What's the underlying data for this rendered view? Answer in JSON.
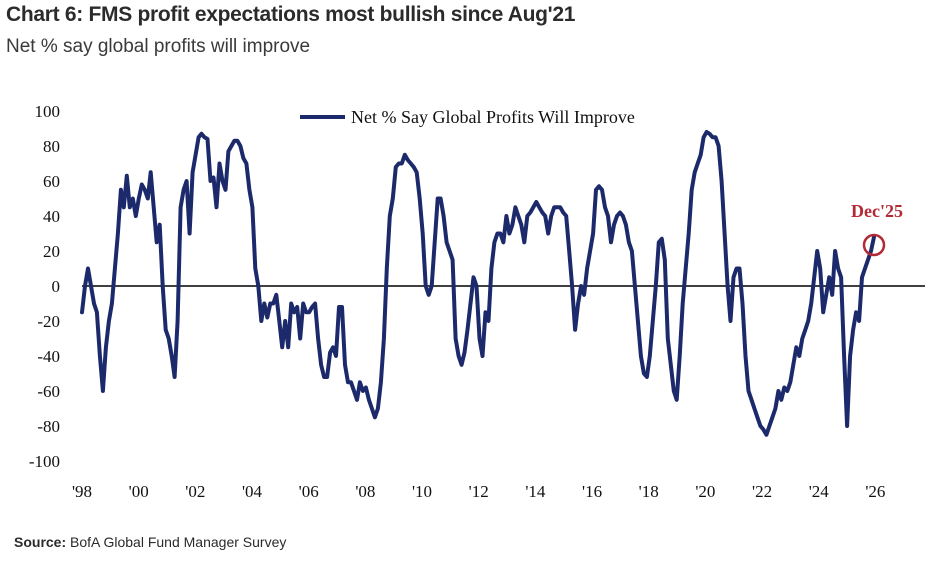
{
  "header": {
    "title": "Chart 6: FMS profit expectations most bullish since Aug'21",
    "subtitle": "Net % say global profits will improve"
  },
  "footer": {
    "source_label": "Source:",
    "source_text": "BofA Global Fund Manager Survey"
  },
  "colors": {
    "line": "#1c2a6b",
    "accent": "#b22a35",
    "axis": "#000000"
  },
  "chart_data": {
    "type": "line",
    "title": "",
    "xlabel": "",
    "ylabel": "",
    "legend": "top-center",
    "grid": false,
    "xlim": [
      1998,
      2026.9
    ],
    "ylim": [
      -100,
      100
    ],
    "yticks": [
      100,
      80,
      60,
      40,
      20,
      0,
      -20,
      -40,
      -60,
      -80,
      -100
    ],
    "xticks": [
      {
        "value": 1998,
        "label": "'98"
      },
      {
        "value": 2000,
        "label": "'00"
      },
      {
        "value": 2002,
        "label": "'02"
      },
      {
        "value": 2004,
        "label": "'04"
      },
      {
        "value": 2006,
        "label": "'06"
      },
      {
        "value": 2008,
        "label": "'08"
      },
      {
        "value": 2010,
        "label": "'10"
      },
      {
        "value": 2012,
        "label": "'12"
      },
      {
        "value": 2014,
        "label": "'14"
      },
      {
        "value": 2016,
        "label": "'16"
      },
      {
        "value": 2018,
        "label": "'18"
      },
      {
        "value": 2020,
        "label": "'20"
      },
      {
        "value": 2022,
        "label": "'22"
      },
      {
        "value": 2024,
        "label": "'24"
      },
      {
        "value": 2026,
        "label": "'26"
      }
    ],
    "series": [
      {
        "name": "Net % Say Global Profits Will Improve",
        "points": [
          [
            1998.0,
            -15
          ],
          [
            1998.1,
            0
          ],
          [
            1998.2,
            10
          ],
          [
            1998.3,
            0
          ],
          [
            1998.4,
            -10
          ],
          [
            1998.5,
            -15
          ],
          [
            1998.6,
            -40
          ],
          [
            1998.7,
            -60
          ],
          [
            1998.8,
            -35
          ],
          [
            1998.9,
            -20
          ],
          [
            1999.0,
            -10
          ],
          [
            1999.1,
            10
          ],
          [
            1999.2,
            30
          ],
          [
            1999.3,
            55
          ],
          [
            1999.4,
            45
          ],
          [
            1999.5,
            63
          ],
          [
            1999.6,
            45
          ],
          [
            1999.7,
            50
          ],
          [
            1999.8,
            40
          ],
          [
            1999.9,
            50
          ],
          [
            2000.0,
            58
          ],
          [
            2000.1,
            55
          ],
          [
            2000.2,
            50
          ],
          [
            2000.3,
            65
          ],
          [
            2000.4,
            45
          ],
          [
            2000.5,
            25
          ],
          [
            2000.6,
            35
          ],
          [
            2000.7,
            0
          ],
          [
            2000.8,
            -25
          ],
          [
            2000.9,
            -30
          ],
          [
            2001.0,
            -40
          ],
          [
            2001.1,
            -52
          ],
          [
            2001.2,
            -20
          ],
          [
            2001.3,
            45
          ],
          [
            2001.4,
            55
          ],
          [
            2001.5,
            60
          ],
          [
            2001.6,
            30
          ],
          [
            2001.7,
            65
          ],
          [
            2001.8,
            75
          ],
          [
            2001.9,
            85
          ],
          [
            2002.0,
            87
          ],
          [
            2002.1,
            85
          ],
          [
            2002.2,
            84
          ],
          [
            2002.3,
            60
          ],
          [
            2002.4,
            62
          ],
          [
            2002.5,
            45
          ],
          [
            2002.6,
            70
          ],
          [
            2002.7,
            60
          ],
          [
            2002.8,
            55
          ],
          [
            2002.9,
            77
          ],
          [
            2003.0,
            80
          ],
          [
            2003.1,
            83
          ],
          [
            2003.2,
            83
          ],
          [
            2003.3,
            80
          ],
          [
            2003.4,
            73
          ],
          [
            2003.5,
            70
          ],
          [
            2003.6,
            55
          ],
          [
            2003.7,
            45
          ],
          [
            2003.8,
            10
          ],
          [
            2003.9,
            0
          ],
          [
            2004.0,
            -20
          ],
          [
            2004.1,
            -10
          ],
          [
            2004.2,
            -18
          ],
          [
            2004.3,
            -10
          ],
          [
            2004.4,
            -10
          ],
          [
            2004.5,
            -5
          ],
          [
            2004.6,
            -20
          ],
          [
            2004.7,
            -35
          ],
          [
            2004.8,
            -20
          ],
          [
            2004.9,
            -35
          ],
          [
            2005.0,
            -10
          ],
          [
            2005.1,
            -15
          ],
          [
            2005.2,
            -12
          ],
          [
            2005.3,
            -30
          ],
          [
            2005.4,
            -10
          ],
          [
            2005.5,
            -15
          ],
          [
            2005.6,
            -15
          ],
          [
            2005.7,
            -12
          ],
          [
            2005.8,
            -10
          ],
          [
            2005.9,
            -30
          ],
          [
            2006.0,
            -45
          ],
          [
            2006.1,
            -52
          ],
          [
            2006.2,
            -52
          ],
          [
            2006.3,
            -38
          ],
          [
            2006.4,
            -35
          ],
          [
            2006.5,
            -40
          ],
          [
            2006.6,
            -12
          ],
          [
            2006.7,
            -12
          ],
          [
            2006.8,
            -45
          ],
          [
            2006.9,
            -55
          ],
          [
            2007.0,
            -55
          ],
          [
            2007.1,
            -60
          ],
          [
            2007.2,
            -65
          ],
          [
            2007.3,
            -55
          ],
          [
            2007.4,
            -60
          ],
          [
            2007.5,
            -58
          ],
          [
            2007.6,
            -65
          ],
          [
            2007.7,
            -70
          ],
          [
            2007.8,
            -75
          ],
          [
            2007.9,
            -70
          ],
          [
            2008.0,
            -55
          ],
          [
            2008.1,
            -30
          ],
          [
            2008.2,
            10
          ],
          [
            2008.3,
            40
          ],
          [
            2008.4,
            50
          ],
          [
            2008.5,
            68
          ],
          [
            2008.6,
            70
          ],
          [
            2008.7,
            70
          ],
          [
            2008.8,
            75
          ],
          [
            2008.9,
            72
          ],
          [
            2009.0,
            70
          ],
          [
            2009.1,
            68
          ],
          [
            2009.2,
            65
          ],
          [
            2009.3,
            50
          ],
          [
            2009.4,
            30
          ],
          [
            2009.5,
            0
          ],
          [
            2009.6,
            -5
          ],
          [
            2009.7,
            0
          ],
          [
            2009.8,
            25
          ],
          [
            2009.9,
            50
          ],
          [
            2010.0,
            50
          ],
          [
            2010.1,
            40
          ],
          [
            2010.2,
            25
          ],
          [
            2010.3,
            20
          ],
          [
            2010.4,
            15
          ],
          [
            2010.5,
            -30
          ],
          [
            2010.6,
            -40
          ],
          [
            2010.7,
            -45
          ],
          [
            2010.8,
            -38
          ],
          [
            2010.9,
            -25
          ],
          [
            2011.0,
            -10
          ],
          [
            2011.1,
            5
          ],
          [
            2011.2,
            0
          ],
          [
            2011.3,
            -30
          ],
          [
            2011.4,
            -40
          ],
          [
            2011.5,
            -15
          ],
          [
            2011.6,
            -20
          ],
          [
            2011.7,
            10
          ],
          [
            2011.8,
            25
          ],
          [
            2011.9,
            30
          ],
          [
            2012.0,
            30
          ],
          [
            2012.1,
            25
          ],
          [
            2012.2,
            40
          ],
          [
            2012.3,
            30
          ],
          [
            2012.4,
            35
          ],
          [
            2012.5,
            45
          ],
          [
            2012.6,
            40
          ],
          [
            2012.7,
            35
          ],
          [
            2012.8,
            25
          ],
          [
            2012.9,
            40
          ],
          [
            2013.0,
            42
          ],
          [
            2013.1,
            45
          ],
          [
            2013.2,
            48
          ],
          [
            2013.3,
            45
          ],
          [
            2013.4,
            42
          ],
          [
            2013.5,
            40
          ],
          [
            2013.6,
            30
          ],
          [
            2013.7,
            40
          ],
          [
            2013.8,
            45
          ],
          [
            2013.9,
            45
          ],
          [
            2014.0,
            45
          ],
          [
            2014.1,
            42
          ],
          [
            2014.2,
            40
          ],
          [
            2014.3,
            20
          ],
          [
            2014.4,
            0
          ],
          [
            2014.5,
            -25
          ],
          [
            2014.6,
            -10
          ],
          [
            2014.7,
            0
          ],
          [
            2014.8,
            -5
          ],
          [
            2014.9,
            10
          ],
          [
            2015.0,
            20
          ],
          [
            2015.1,
            30
          ],
          [
            2015.2,
            55
          ],
          [
            2015.3,
            57
          ],
          [
            2015.4,
            55
          ],
          [
            2015.5,
            45
          ],
          [
            2015.6,
            40
          ],
          [
            2015.7,
            25
          ],
          [
            2015.8,
            35
          ],
          [
            2015.9,
            40
          ],
          [
            2016.0,
            42
          ],
          [
            2016.1,
            40
          ],
          [
            2016.2,
            35
          ],
          [
            2016.3,
            25
          ],
          [
            2016.4,
            20
          ],
          [
            2016.5,
            0
          ],
          [
            2016.6,
            -20
          ],
          [
            2016.7,
            -40
          ],
          [
            2016.8,
            -50
          ],
          [
            2016.9,
            -52
          ],
          [
            2017.0,
            -40
          ],
          [
            2017.1,
            -20
          ],
          [
            2017.2,
            0
          ],
          [
            2017.3,
            25
          ],
          [
            2017.4,
            27
          ],
          [
            2017.5,
            15
          ],
          [
            2017.6,
            -30
          ],
          [
            2017.7,
            -45
          ],
          [
            2017.8,
            -60
          ],
          [
            2017.9,
            -65
          ],
          [
            2018.0,
            -40
          ],
          [
            2018.1,
            -10
          ],
          [
            2018.2,
            10
          ],
          [
            2018.3,
            30
          ],
          [
            2018.4,
            55
          ],
          [
            2018.5,
            65
          ],
          [
            2018.6,
            70
          ],
          [
            2018.7,
            75
          ],
          [
            2018.8,
            85
          ],
          [
            2018.9,
            88
          ],
          [
            2019.0,
            87
          ],
          [
            2019.1,
            85
          ],
          [
            2019.2,
            85
          ],
          [
            2019.3,
            80
          ],
          [
            2019.4,
            60
          ],
          [
            2019.5,
            30
          ],
          [
            2019.6,
            0
          ],
          [
            2019.7,
            -20
          ],
          [
            2019.8,
            5
          ],
          [
            2019.9,
            10
          ],
          [
            2020.0,
            10
          ],
          [
            2020.1,
            -10
          ],
          [
            2020.2,
            -40
          ],
          [
            2020.3,
            -60
          ],
          [
            2020.4,
            -65
          ],
          [
            2020.5,
            -70
          ],
          [
            2020.6,
            -75
          ],
          [
            2020.7,
            -80
          ],
          [
            2020.8,
            -82
          ],
          [
            2020.9,
            -85
          ],
          [
            2021.0,
            -80
          ],
          [
            2021.1,
            -75
          ],
          [
            2021.2,
            -70
          ],
          [
            2021.3,
            -60
          ],
          [
            2021.4,
            -65
          ],
          [
            2021.5,
            -58
          ],
          [
            2021.6,
            -60
          ],
          [
            2021.7,
            -55
          ],
          [
            2021.8,
            -45
          ],
          [
            2021.9,
            -35
          ],
          [
            2022.0,
            -40
          ],
          [
            2022.1,
            -30
          ],
          [
            2022.2,
            -25
          ],
          [
            2022.3,
            -20
          ],
          [
            2022.4,
            -10
          ],
          [
            2022.5,
            5
          ],
          [
            2022.6,
            20
          ],
          [
            2022.7,
            10
          ],
          [
            2022.8,
            -15
          ],
          [
            2022.9,
            -5
          ],
          [
            2023.0,
            5
          ],
          [
            2023.1,
            -5
          ],
          [
            2023.2,
            20
          ],
          [
            2023.3,
            10
          ],
          [
            2023.4,
            5
          ],
          [
            2023.5,
            -40
          ],
          [
            2023.6,
            -80
          ],
          [
            2023.7,
            -40
          ],
          [
            2023.8,
            -25
          ],
          [
            2023.9,
            -15
          ],
          [
            2024.0,
            -20
          ],
          [
            2024.1,
            5
          ],
          [
            2024.2,
            10
          ],
          [
            2024.3,
            15
          ],
          [
            2024.4,
            20
          ],
          [
            2024.5,
            28
          ]
        ],
        "x_note": "x values are plotted on a compressed timeline"
      }
    ],
    "annotation": {
      "label": "Dec'25",
      "x": 2024.5,
      "y": 28,
      "marker": "circle"
    }
  }
}
